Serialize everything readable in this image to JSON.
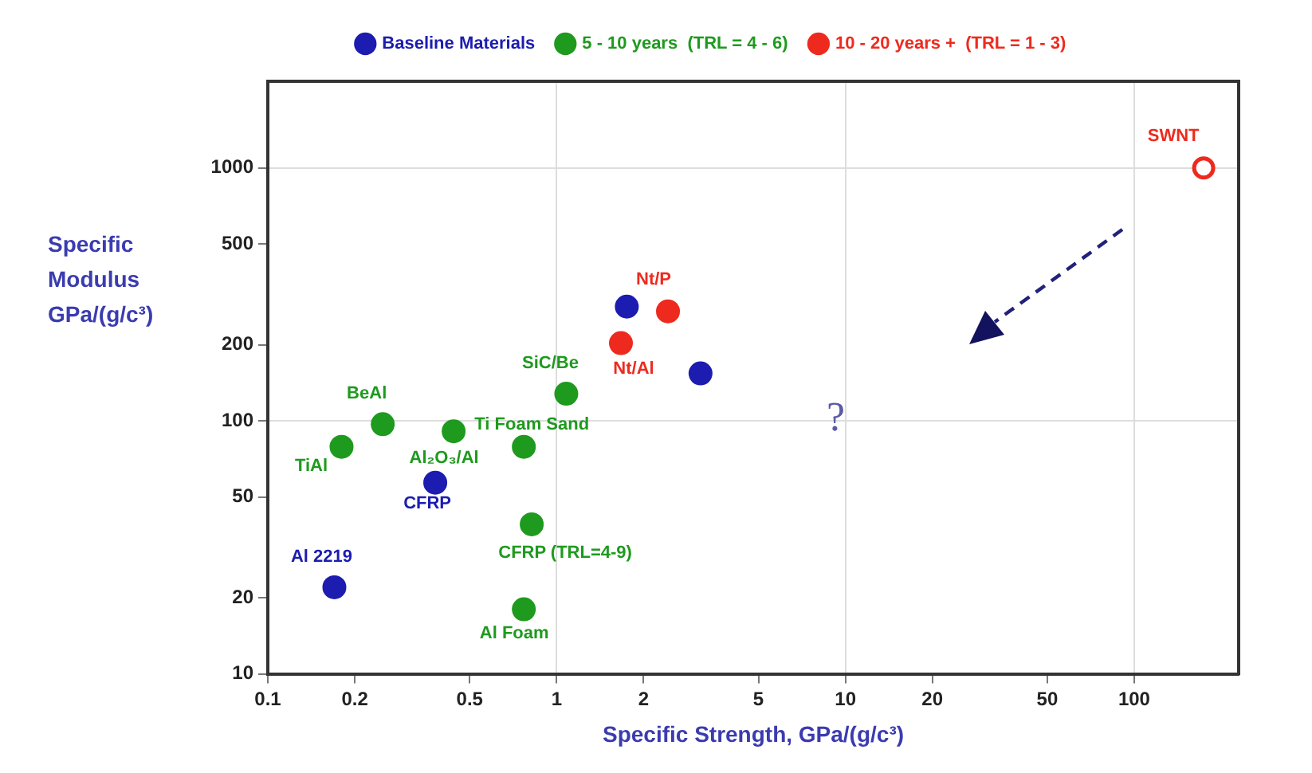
{
  "chart_data": {
    "type": "scatter",
    "xlabel": "Specific Strength, GPa/(g/c³)",
    "ylabel": "Specific Modulus GPa/(g/c³)",
    "log": "xy",
    "xlim": [
      0.1,
      230
    ],
    "ylim": [
      10,
      2200
    ],
    "xticks": [
      0.1,
      0.2,
      0.5,
      1,
      2,
      5,
      10,
      20,
      50,
      100
    ],
    "yticks": [
      10,
      20,
      50,
      100,
      200,
      500,
      1000
    ],
    "grid": true,
    "legend": "top",
    "marker": "circle",
    "series": [
      {
        "name": "Baseline Materials",
        "color": "#1c1cb0",
        "x": [
          0.17,
          0.38,
          1.75,
          3.15
        ],
        "values": [
          22,
          57,
          283,
          154
        ]
      },
      {
        "name": "5 - 10 years  (TRL = 4 - 6)",
        "color": "#1e9a1e",
        "x": [
          0.18,
          0.25,
          0.44,
          0.77,
          1.08,
          0.82,
          0.77
        ],
        "values": [
          79,
          97,
          91,
          79,
          128,
          39,
          18
        ]
      },
      {
        "name": "10 - 20 years +  (TRL = 1 - 3)",
        "color": "#ee2a1e",
        "x": [
          2.43,
          1.67
        ],
        "values": [
          271,
          203
        ]
      },
      {
        "color": "#ee2a1e",
        "x": [
          174
        ],
        "values": [
          1000
        ]
      }
    ],
    "annotations": [
      {
        "text": "TiAl",
        "x": 0.18,
        "y": 79
      },
      {
        "text": "BeAl",
        "x": 0.25,
        "y": 97
      },
      {
        "text": "Al₂O₃/Al",
        "x": 0.44,
        "y": 91
      },
      {
        "text": "Ti Foam Sand",
        "x": 0.77,
        "y": 79
      },
      {
        "text": "CFRP",
        "x": 0.38,
        "y": 57
      },
      {
        "text": "CFRP (TRL=4-9)",
        "x": 0.82,
        "y": 39
      },
      {
        "text": "Al Foam",
        "x": 0.77,
        "y": 18
      },
      {
        "text": "Al 2219",
        "x": 0.17,
        "y": 22
      },
      {
        "text": "SiC/Be",
        "x": 1.08,
        "y": 128
      },
      {
        "text": "Nt/P",
        "x": 2.43,
        "y": 271
      },
      {
        "text": "Nt/Al",
        "x": 1.67,
        "y": 203
      },
      {
        "text": "SWNT",
        "x": 174,
        "y": 1000
      },
      "?"
    ]
  }
}
